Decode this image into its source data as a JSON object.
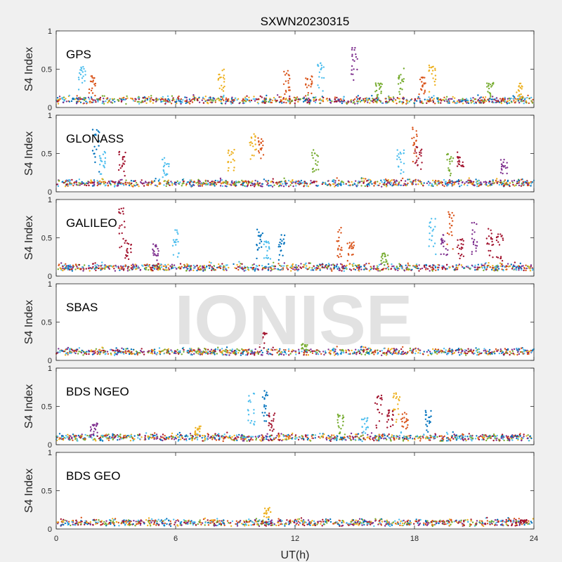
{
  "chart_data": {
    "type": "scatter",
    "title": "SXWN20230315",
    "xlabel": "UT(h)",
    "ylabel": "S4 Index",
    "xlim": [
      0,
      24
    ],
    "xticks": [
      0,
      6,
      12,
      18,
      24
    ],
    "ylim": [
      0,
      1
    ],
    "yticks": [
      0,
      0.5,
      1
    ],
    "watermark": "IONISE",
    "colors": [
      "#0072bd",
      "#d95319",
      "#edb120",
      "#7e2f8e",
      "#77ac30",
      "#4dbeee",
      "#a2142f"
    ],
    "panels": [
      {
        "label": "GPS",
        "baseline": 0.08,
        "spikes": [
          [
            1.3,
            0.55,
            5
          ],
          [
            1.8,
            0.42,
            1
          ],
          [
            8.3,
            0.5,
            2
          ],
          [
            11.6,
            0.5,
            1
          ],
          [
            12.7,
            0.42,
            1
          ],
          [
            13.3,
            0.6,
            5
          ],
          [
            15.0,
            0.78,
            3
          ],
          [
            16.2,
            0.32,
            4
          ],
          [
            17.3,
            0.52,
            4
          ],
          [
            18.4,
            0.4,
            1
          ],
          [
            18.9,
            0.55,
            2
          ],
          [
            21.8,
            0.35,
            4
          ],
          [
            23.3,
            0.32,
            2
          ]
        ]
      },
      {
        "label": "GLONASS",
        "baseline": 0.1,
        "spikes": [
          [
            2.0,
            0.85,
            0
          ],
          [
            2.3,
            0.55,
            5
          ],
          [
            3.3,
            0.55,
            6
          ],
          [
            5.5,
            0.45,
            5
          ],
          [
            8.8,
            0.58,
            2
          ],
          [
            9.9,
            0.78,
            2
          ],
          [
            10.3,
            0.72,
            1
          ],
          [
            13.0,
            0.55,
            4
          ],
          [
            17.3,
            0.58,
            5
          ],
          [
            18.0,
            0.85,
            1
          ],
          [
            18.2,
            0.6,
            6
          ],
          [
            19.8,
            0.5,
            4
          ],
          [
            20.3,
            0.52,
            6
          ],
          [
            22.5,
            0.45,
            3
          ]
        ]
      },
      {
        "label": "GALILEO",
        "baseline": 0.1,
        "spikes": [
          [
            3.3,
            0.9,
            6
          ],
          [
            3.6,
            0.5,
            6
          ],
          [
            5.0,
            0.45,
            3
          ],
          [
            6.0,
            0.62,
            5
          ],
          [
            10.2,
            0.62,
            0
          ],
          [
            10.6,
            0.55,
            5
          ],
          [
            11.3,
            0.55,
            0
          ],
          [
            14.2,
            0.65,
            1
          ],
          [
            14.8,
            0.45,
            1
          ],
          [
            16.5,
            0.3,
            4
          ],
          [
            18.9,
            0.75,
            5
          ],
          [
            19.5,
            0.55,
            3
          ],
          [
            19.8,
            0.88,
            1
          ],
          [
            20.3,
            0.5,
            6
          ],
          [
            21.0,
            0.7,
            3
          ],
          [
            21.8,
            0.62,
            6
          ],
          [
            22.3,
            0.55,
            6
          ]
        ]
      },
      {
        "label": "SBAS",
        "baseline": 0.1,
        "spikes": [
          [
            10.4,
            0.38,
            6
          ],
          [
            12.5,
            0.22,
            4
          ]
        ]
      },
      {
        "label": "BDS NGEO",
        "baseline": 0.08,
        "spikes": [
          [
            1.9,
            0.28,
            3
          ],
          [
            7.1,
            0.25,
            2
          ],
          [
            9.8,
            0.68,
            5
          ],
          [
            10.5,
            0.72,
            0
          ],
          [
            10.8,
            0.42,
            6
          ],
          [
            14.3,
            0.4,
            4
          ],
          [
            15.5,
            0.35,
            5
          ],
          [
            16.2,
            0.65,
            6
          ],
          [
            16.8,
            0.45,
            6
          ],
          [
            17.1,
            0.68,
            2
          ],
          [
            17.5,
            0.42,
            1
          ],
          [
            18.7,
            0.48,
            0
          ]
        ]
      },
      {
        "label": "BDS GEO",
        "baseline": 0.07,
        "spikes": [
          [
            10.6,
            0.28,
            2
          ],
          [
            23.5,
            0.12,
            6
          ]
        ]
      }
    ]
  }
}
